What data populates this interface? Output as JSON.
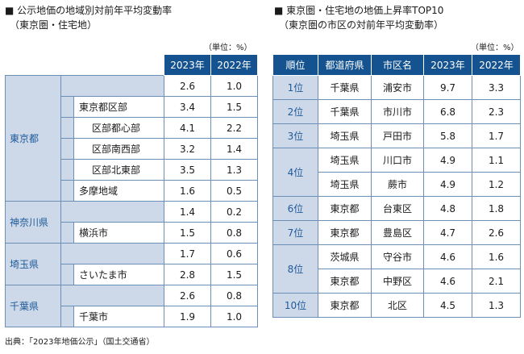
{
  "left": {
    "title_line1": "■ 公示地価の地域別対前年平均変動率",
    "title_line2": "（東京圏・住宅地）",
    "unit": "（単位：%）",
    "headers": [
      "2023年",
      "2022年"
    ],
    "rows": [
      {
        "cat": "東京都",
        "label": "",
        "y2023": "2.6",
        "y2022": "1.0"
      },
      {
        "label": "東京都区部",
        "y2023": "3.4",
        "y2022": "1.5"
      },
      {
        "label": "区部都心部",
        "y2023": "4.1",
        "y2022": "2.2"
      },
      {
        "label": "区部南西部",
        "y2023": "3.2",
        "y2022": "1.4"
      },
      {
        "label": "区部北東部",
        "y2023": "3.5",
        "y2022": "1.3"
      },
      {
        "label": "多摩地域",
        "y2023": "1.6",
        "y2022": "0.5"
      },
      {
        "cat": "神奈川県",
        "label": "",
        "y2023": "1.4",
        "y2022": "0.2"
      },
      {
        "label": "横浜市",
        "y2023": "1.5",
        "y2022": "0.8"
      },
      {
        "cat": "埼玉県",
        "label": "",
        "y2023": "1.7",
        "y2022": "0.6"
      },
      {
        "label": "さいたま市",
        "y2023": "2.8",
        "y2022": "1.5"
      },
      {
        "cat": "千葉県",
        "label": "",
        "y2023": "2.6",
        "y2022": "0.8"
      },
      {
        "label": "千葉市",
        "y2023": "1.9",
        "y2022": "1.0"
      }
    ]
  },
  "right": {
    "title_line1": "■ 東京圏・住宅地の地価上昇率TOP10",
    "title_line2": "（東京圏の市区の対前年平均変動率）",
    "unit": "（単位：%）",
    "headers": [
      "順位",
      "都道府県",
      "市区名",
      "2023年",
      "2022年"
    ],
    "rows": [
      {
        "rank": "1位",
        "pref": "千葉県",
        "city": "浦安市",
        "y2023": "9.7",
        "y2022": "3.3"
      },
      {
        "rank": "2位",
        "pref": "千葉県",
        "city": "市川市",
        "y2023": "6.8",
        "y2022": "2.3"
      },
      {
        "rank": "3位",
        "pref": "埼玉県",
        "city": "戸田市",
        "y2023": "5.8",
        "y2022": "1.7"
      },
      {
        "rank": "4位",
        "pref": "埼玉県",
        "city": "川口市",
        "y2023": "4.9",
        "y2022": "1.1"
      },
      {
        "rank": "",
        "pref": "埼玉県",
        "city": "蕨市",
        "y2023": "4.9",
        "y2022": "1.2"
      },
      {
        "rank": "6位",
        "pref": "東京都",
        "city": "台東区",
        "y2023": "4.8",
        "y2022": "1.8"
      },
      {
        "rank": "7位",
        "pref": "東京都",
        "city": "豊島区",
        "y2023": "4.7",
        "y2022": "2.6"
      },
      {
        "rank": "8位",
        "pref": "茨城県",
        "city": "守谷市",
        "y2023": "4.6",
        "y2022": "1.6"
      },
      {
        "rank": "",
        "pref": "東京都",
        "city": "中野区",
        "y2023": "4.6",
        "y2022": "2.1"
      },
      {
        "rank": "10位",
        "pref": "東京都",
        "city": "北区",
        "y2023": "4.5",
        "y2022": "1.3"
      }
    ]
  },
  "source": "出典：「2023年地価公示」（国土交通省）"
}
